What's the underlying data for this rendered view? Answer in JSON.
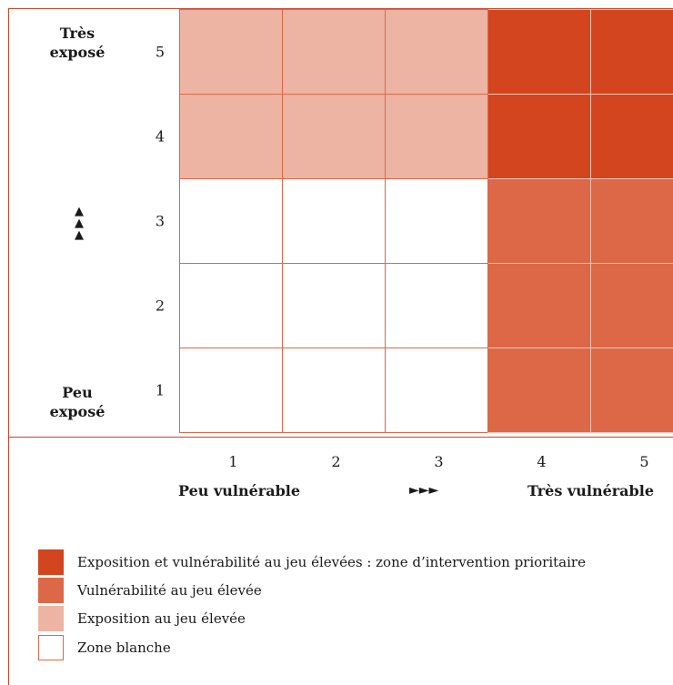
{
  "chart_data": {
    "type": "heatmap",
    "x_ticks": [
      "1",
      "2",
      "3",
      "4",
      "5"
    ],
    "y_ticks": [
      "5",
      "4",
      "3",
      "2",
      "1"
    ],
    "x_low_label": "Peu vulnérable",
    "x_high_label": "Très vulnérable",
    "x_arrow": "►►►",
    "y_high_label": [
      "Très",
      "exposé"
    ],
    "y_low_label": [
      "Peu",
      "exposé"
    ],
    "y_arrow": [
      "▲",
      "▲",
      "▲"
    ],
    "zones_by_row_top_to_bottom": [
      [
        "exposure",
        "exposure",
        "exposure",
        "priority",
        "priority"
      ],
      [
        "exposure",
        "exposure",
        "exposure",
        "priority",
        "priority"
      ],
      [
        "white",
        "white",
        "white",
        "vulnerability",
        "vulnerability"
      ],
      [
        "white",
        "white",
        "white",
        "vulnerability",
        "vulnerability"
      ],
      [
        "white",
        "white",
        "white",
        "vulnerability",
        "vulnerability"
      ]
    ],
    "colors": {
      "priority": "#d2451e",
      "vulnerability": "#dc6848",
      "exposure": "#edb3a3",
      "white": "#ffffff",
      "grid": "#dc6848",
      "border": "#c8452a"
    },
    "legend": [
      {
        "zone": "priority",
        "label": "Exposition et vulnérabilité au jeu élevées : zone d’intervention prioritaire"
      },
      {
        "zone": "vulnerability",
        "label": "Vulnérabilité au jeu élevée"
      },
      {
        "zone": "exposure",
        "label": "Exposition au jeu élevée"
      },
      {
        "zone": "white",
        "label": "Zone blanche"
      }
    ]
  }
}
